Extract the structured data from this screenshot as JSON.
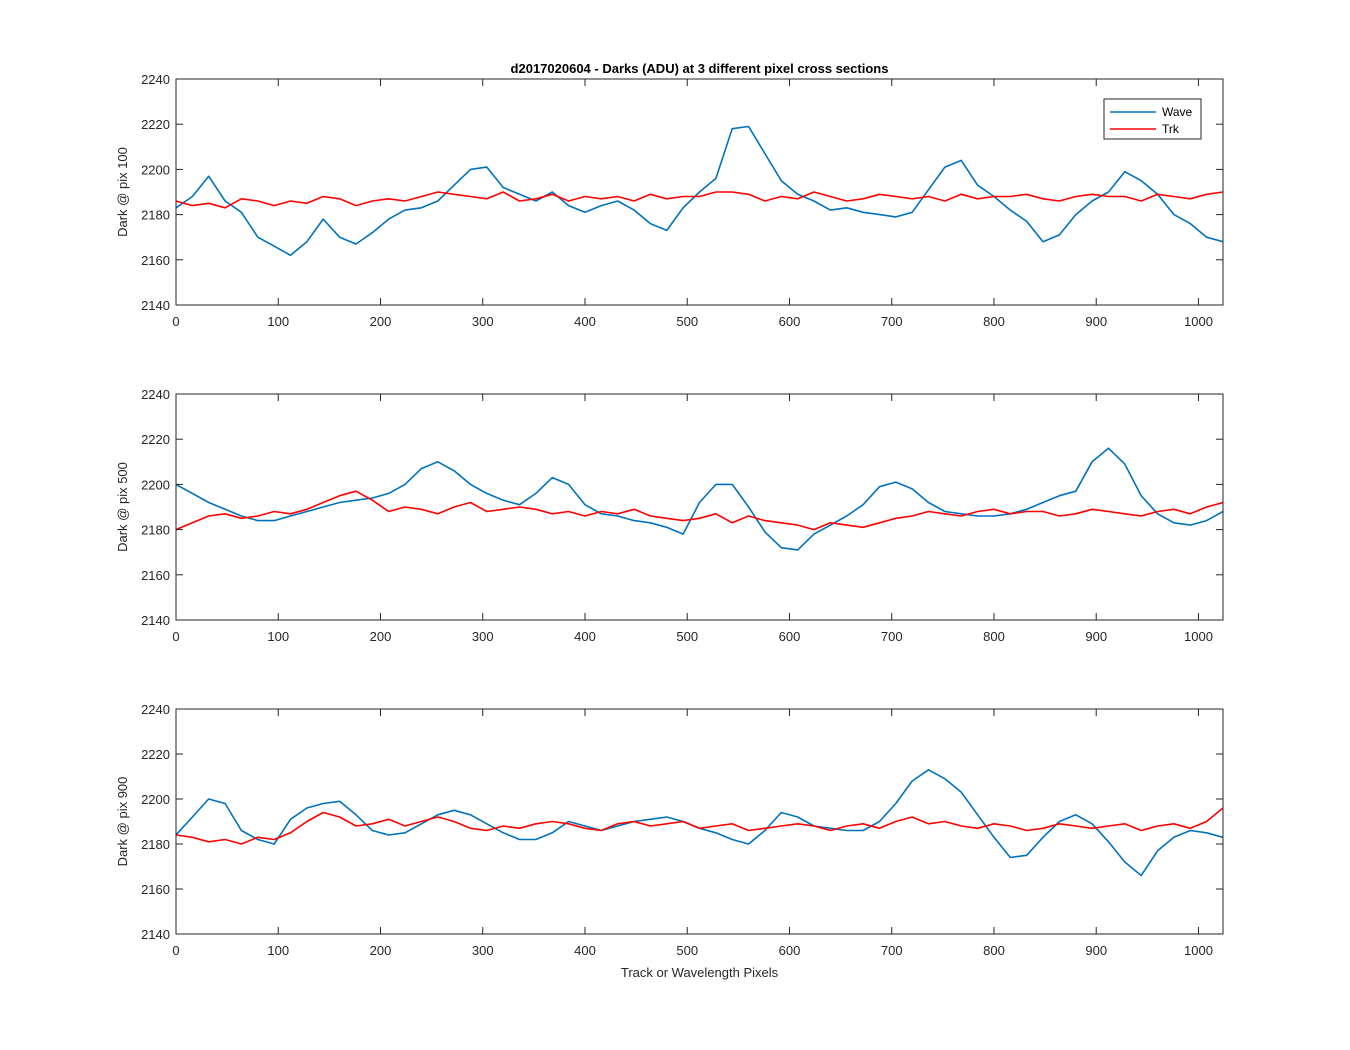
{
  "chart_data": [
    {
      "type": "line",
      "title": "d2017020604 - Darks (ADU) at 3 different pixel cross sections",
      "xlabel": "",
      "ylabel": "Dark @ pix 100",
      "xlim": [
        0,
        1024
      ],
      "ylim": [
        2140,
        2240
      ],
      "xticks": [
        0,
        100,
        200,
        300,
        400,
        500,
        600,
        700,
        800,
        900,
        1000
      ],
      "yticks": [
        2140,
        2160,
        2180,
        2200,
        2220,
        2240
      ],
      "legend": {
        "position": "top-right",
        "entries": [
          "Wave",
          "Trk"
        ]
      },
      "series": [
        {
          "name": "Wave",
          "color": "#0072BD",
          "x": [
            0,
            16,
            32,
            48,
            64,
            80,
            96,
            112,
            128,
            144,
            160,
            176,
            192,
            208,
            224,
            240,
            256,
            272,
            288,
            304,
            320,
            336,
            352,
            368,
            384,
            400,
            416,
            432,
            448,
            464,
            480,
            496,
            512,
            528,
            544,
            560,
            576,
            592,
            608,
            624,
            640,
            656,
            672,
            688,
            704,
            720,
            736,
            752,
            768,
            784,
            800,
            816,
            832,
            848,
            864,
            880,
            896,
            912,
            928,
            944,
            960,
            976,
            992,
            1008,
            1024
          ],
          "y": [
            2183,
            2188,
            2197,
            2186,
            2181,
            2170,
            2166,
            2162,
            2168,
            2178,
            2170,
            2167,
            2172,
            2178,
            2182,
            2183,
            2186,
            2193,
            2200,
            2201,
            2192,
            2189,
            2186,
            2190,
            2184,
            2181,
            2184,
            2186,
            2182,
            2176,
            2173,
            2183,
            2190,
            2196,
            2218,
            2219,
            2207,
            2195,
            2189,
            2186,
            2182,
            2183,
            2181,
            2180,
            2179,
            2181,
            2191,
            2201,
            2204,
            2193,
            2188,
            2182,
            2177,
            2168,
            2171,
            2180,
            2186,
            2190,
            2199,
            2195,
            2189,
            2180,
            2176,
            2170,
            2168
          ]
        },
        {
          "name": "Trk",
          "color": "#FF0000",
          "x": [
            0,
            16,
            32,
            48,
            64,
            80,
            96,
            112,
            128,
            144,
            160,
            176,
            192,
            208,
            224,
            240,
            256,
            272,
            288,
            304,
            320,
            336,
            352,
            368,
            384,
            400,
            416,
            432,
            448,
            464,
            480,
            496,
            512,
            528,
            544,
            560,
            576,
            592,
            608,
            624,
            640,
            656,
            672,
            688,
            704,
            720,
            736,
            752,
            768,
            784,
            800,
            816,
            832,
            848,
            864,
            880,
            896,
            912,
            928,
            944,
            960,
            976,
            992,
            1008,
            1024
          ],
          "y": [
            2186,
            2184,
            2185,
            2183,
            2187,
            2186,
            2184,
            2186,
            2185,
            2188,
            2187,
            2184,
            2186,
            2187,
            2186,
            2188,
            2190,
            2189,
            2188,
            2187,
            2190,
            2186,
            2187,
            2189,
            2186,
            2188,
            2187,
            2188,
            2186,
            2189,
            2187,
            2188,
            2188,
            2190,
            2190,
            2189,
            2186,
            2188,
            2187,
            2190,
            2188,
            2186,
            2187,
            2189,
            2188,
            2187,
            2188,
            2186,
            2189,
            2187,
            2188,
            2188,
            2189,
            2187,
            2186,
            2188,
            2189,
            2188,
            2188,
            2186,
            2189,
            2188,
            2187,
            2189,
            2190
          ]
        }
      ]
    },
    {
      "type": "line",
      "title": "",
      "xlabel": "",
      "ylabel": "Dark @ pix 500",
      "xlim": [
        0,
        1024
      ],
      "ylim": [
        2140,
        2240
      ],
      "xticks": [
        0,
        100,
        200,
        300,
        400,
        500,
        600,
        700,
        800,
        900,
        1000
      ],
      "yticks": [
        2140,
        2160,
        2180,
        2200,
        2220,
        2240
      ],
      "series": [
        {
          "name": "Wave",
          "color": "#0072BD",
          "x": [
            0,
            16,
            32,
            48,
            64,
            80,
            96,
            112,
            128,
            144,
            160,
            176,
            192,
            208,
            224,
            240,
            256,
            272,
            288,
            304,
            320,
            336,
            352,
            368,
            384,
            400,
            416,
            432,
            448,
            464,
            480,
            496,
            512,
            528,
            544,
            560,
            576,
            592,
            608,
            624,
            640,
            656,
            672,
            688,
            704,
            720,
            736,
            752,
            768,
            784,
            800,
            816,
            832,
            848,
            864,
            880,
            896,
            912,
            928,
            944,
            960,
            976,
            992,
            1008,
            1024
          ],
          "y": [
            2200,
            2196,
            2192,
            2189,
            2186,
            2184,
            2184,
            2186,
            2188,
            2190,
            2192,
            2193,
            2194,
            2196,
            2200,
            2207,
            2210,
            2206,
            2200,
            2196,
            2193,
            2191,
            2196,
            2203,
            2200,
            2191,
            2187,
            2186,
            2184,
            2183,
            2181,
            2178,
            2192,
            2200,
            2200,
            2190,
            2179,
            2172,
            2171,
            2178,
            2182,
            2186,
            2191,
            2199,
            2201,
            2198,
            2192,
            2188,
            2187,
            2186,
            2186,
            2187,
            2189,
            2192,
            2195,
            2197,
            2210,
            2216,
            2209,
            2195,
            2187,
            2183,
            2182,
            2184,
            2188
          ]
        },
        {
          "name": "Trk",
          "color": "#FF0000",
          "x": [
            0,
            16,
            32,
            48,
            64,
            80,
            96,
            112,
            128,
            144,
            160,
            176,
            192,
            208,
            224,
            240,
            256,
            272,
            288,
            304,
            320,
            336,
            352,
            368,
            384,
            400,
            416,
            432,
            448,
            464,
            480,
            496,
            512,
            528,
            544,
            560,
            576,
            592,
            608,
            624,
            640,
            656,
            672,
            688,
            704,
            720,
            736,
            752,
            768,
            784,
            800,
            816,
            832,
            848,
            864,
            880,
            896,
            912,
            928,
            944,
            960,
            976,
            992,
            1008,
            1024
          ],
          "y": [
            2180,
            2183,
            2186,
            2187,
            2185,
            2186,
            2188,
            2187,
            2189,
            2192,
            2195,
            2197,
            2193,
            2188,
            2190,
            2189,
            2187,
            2190,
            2192,
            2188,
            2189,
            2190,
            2189,
            2187,
            2188,
            2186,
            2188,
            2187,
            2189,
            2186,
            2185,
            2184,
            2185,
            2187,
            2183,
            2186,
            2184,
            2183,
            2182,
            2180,
            2183,
            2182,
            2181,
            2183,
            2185,
            2186,
            2188,
            2187,
            2186,
            2188,
            2189,
            2187,
            2188,
            2188,
            2186,
            2187,
            2189,
            2188,
            2187,
            2186,
            2188,
            2189,
            2187,
            2190,
            2192
          ]
        }
      ]
    },
    {
      "type": "line",
      "title": "",
      "xlabel": "Track or Wavelength Pixels",
      "ylabel": "Dark @ pix 900",
      "xlim": [
        0,
        1024
      ],
      "ylim": [
        2140,
        2240
      ],
      "xticks": [
        0,
        100,
        200,
        300,
        400,
        500,
        600,
        700,
        800,
        900,
        1000
      ],
      "yticks": [
        2140,
        2160,
        2180,
        2200,
        2220,
        2240
      ],
      "series": [
        {
          "name": "Wave",
          "color": "#0072BD",
          "x": [
            0,
            16,
            32,
            48,
            64,
            80,
            96,
            112,
            128,
            144,
            160,
            176,
            192,
            208,
            224,
            240,
            256,
            272,
            288,
            304,
            320,
            336,
            352,
            368,
            384,
            400,
            416,
            432,
            448,
            464,
            480,
            496,
            512,
            528,
            544,
            560,
            576,
            592,
            608,
            624,
            640,
            656,
            672,
            688,
            704,
            720,
            736,
            752,
            768,
            784,
            800,
            816,
            832,
            848,
            864,
            880,
            896,
            912,
            928,
            944,
            960,
            976,
            992,
            1008,
            1024
          ],
          "y": [
            2184,
            2192,
            2200,
            2198,
            2186,
            2182,
            2180,
            2191,
            2196,
            2198,
            2199,
            2193,
            2186,
            2184,
            2185,
            2189,
            2193,
            2195,
            2193,
            2189,
            2185,
            2182,
            2182,
            2185,
            2190,
            2188,
            2186,
            2188,
            2190,
            2191,
            2192,
            2190,
            2187,
            2185,
            2182,
            2180,
            2186,
            2194,
            2192,
            2188,
            2187,
            2186,
            2186,
            2190,
            2198,
            2208,
            2213,
            2209,
            2203,
            2193,
            2183,
            2174,
            2175,
            2183,
            2190,
            2193,
            2189,
            2181,
            2172,
            2166,
            2177,
            2183,
            2186,
            2185,
            2183
          ]
        },
        {
          "name": "Trk",
          "color": "#FF0000",
          "x": [
            0,
            16,
            32,
            48,
            64,
            80,
            96,
            112,
            128,
            144,
            160,
            176,
            192,
            208,
            224,
            240,
            256,
            272,
            288,
            304,
            320,
            336,
            352,
            368,
            384,
            400,
            416,
            432,
            448,
            464,
            480,
            496,
            512,
            528,
            544,
            560,
            576,
            592,
            608,
            624,
            640,
            656,
            672,
            688,
            704,
            720,
            736,
            752,
            768,
            784,
            800,
            816,
            832,
            848,
            864,
            880,
            896,
            912,
            928,
            944,
            960,
            976,
            992,
            1008,
            1024
          ],
          "y": [
            2184,
            2183,
            2181,
            2182,
            2180,
            2183,
            2182,
            2185,
            2190,
            2194,
            2192,
            2188,
            2189,
            2191,
            2188,
            2190,
            2192,
            2190,
            2187,
            2186,
            2188,
            2187,
            2189,
            2190,
            2189,
            2187,
            2186,
            2189,
            2190,
            2188,
            2189,
            2190,
            2187,
            2188,
            2189,
            2186,
            2187,
            2188,
            2189,
            2188,
            2186,
            2188,
            2189,
            2187,
            2190,
            2192,
            2189,
            2190,
            2188,
            2187,
            2189,
            2188,
            2186,
            2187,
            2189,
            2188,
            2187,
            2188,
            2189,
            2186,
            2188,
            2189,
            2187,
            2190,
            2196
          ]
        }
      ]
    }
  ]
}
